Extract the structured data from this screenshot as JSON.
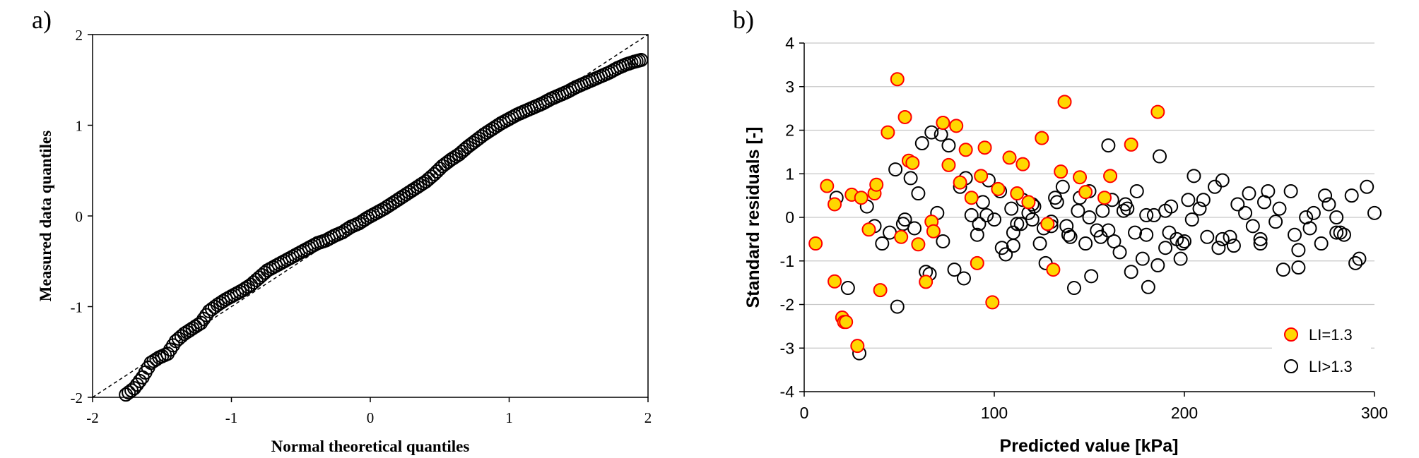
{
  "chart_data": [
    {
      "panel_label": "a)",
      "type": "scatter",
      "xlabel": "Normal theoretical quantiles",
      "ylabel": "Measured data quantiles",
      "xlim": [
        -2,
        2
      ],
      "ylim": [
        -2,
        2
      ],
      "xticks": [
        "-2",
        "-1",
        "0",
        "1",
        "2"
      ],
      "yticks": [
        "-2",
        "-1",
        "0",
        "1",
        "2"
      ],
      "reference_line": {
        "style": "dashed",
        "x": [
          -2,
          2
        ],
        "y": [
          -2,
          2
        ]
      },
      "marker": {
        "shape": "open-circle",
        "edge": "#000000",
        "fill": "none"
      },
      "series": [
        {
          "x": [
            -1.76,
            -1.7,
            -1.64,
            -1.58,
            -1.52,
            -1.46,
            -1.4,
            -1.34,
            -1.28,
            -1.22,
            -1.16,
            -1.1,
            -1.04,
            -0.98,
            -0.92,
            -0.86,
            -0.8,
            -0.74,
            -0.68,
            -0.62,
            -0.56,
            -0.5,
            -0.44,
            -0.38,
            -0.32,
            -0.26,
            -0.2,
            -0.14,
            -0.08,
            -0.02,
            0.04,
            0.1,
            0.16,
            0.22,
            0.28,
            0.34,
            0.4,
            0.46,
            0.52,
            0.58,
            0.64,
            0.7,
            0.76,
            0.82,
            0.88,
            0.94,
            1.0,
            1.06,
            1.12,
            1.18,
            1.24,
            1.3,
            1.36,
            1.42,
            1.48,
            1.54,
            1.6,
            1.66,
            1.72,
            1.78,
            1.84,
            1.9,
            1.95
          ],
          "y": [
            -1.97,
            -1.9,
            -1.78,
            -1.62,
            -1.56,
            -1.52,
            -1.38,
            -1.3,
            -1.24,
            -1.18,
            -1.05,
            -0.98,
            -0.92,
            -0.87,
            -0.82,
            -0.76,
            -0.68,
            -0.6,
            -0.55,
            -0.5,
            -0.45,
            -0.4,
            -0.35,
            -0.3,
            -0.27,
            -0.22,
            -0.18,
            -0.12,
            -0.08,
            -0.02,
            0.03,
            0.08,
            0.14,
            0.2,
            0.26,
            0.32,
            0.38,
            0.46,
            0.55,
            0.62,
            0.68,
            0.76,
            0.83,
            0.9,
            0.96,
            1.02,
            1.07,
            1.12,
            1.16,
            1.2,
            1.24,
            1.29,
            1.33,
            1.37,
            1.42,
            1.46,
            1.5,
            1.54,
            1.58,
            1.63,
            1.67,
            1.7,
            1.72
          ]
        }
      ]
    },
    {
      "panel_label": "b)",
      "type": "scatter",
      "xlabel": "Predicted value [kPa]",
      "ylabel": "Standard residuals [-]",
      "xlim": [
        0,
        300
      ],
      "ylim": [
        -4,
        4
      ],
      "xticks": [
        "0",
        "100",
        "200",
        "300"
      ],
      "yticks": [
        "-4",
        "-3",
        "-2",
        "-1",
        "0",
        "1",
        "2",
        "3",
        "4"
      ],
      "grid": "horizontal",
      "legend": "bottom-right",
      "series": [
        {
          "name": "LI=1.3",
          "marker": {
            "shape": "circle",
            "edge": "#ff0000",
            "fill": "#ffd700"
          },
          "x": [
            6,
            12,
            16,
            16,
            20,
            21,
            22,
            25,
            28,
            30,
            34,
            37,
            38,
            40,
            44,
            49,
            51,
            53,
            55,
            57,
            60,
            64,
            67,
            68,
            73,
            76,
            80,
            82,
            85,
            88,
            91,
            93,
            95,
            99,
            102,
            108,
            112,
            115,
            118,
            125,
            128,
            131,
            135,
            137,
            145,
            148,
            158,
            161,
            172,
            186
          ],
          "y": [
            -0.6,
            0.72,
            0.3,
            -1.47,
            -2.3,
            -2.4,
            -2.4,
            0.52,
            -2.95,
            0.45,
            -0.28,
            0.55,
            0.75,
            -1.67,
            1.95,
            3.17,
            -0.45,
            2.3,
            1.3,
            1.25,
            -0.62,
            -1.48,
            -0.1,
            -0.32,
            2.17,
            1.2,
            2.1,
            0.8,
            1.55,
            0.45,
            -1.05,
            0.95,
            1.6,
            -1.95,
            0.65,
            1.37,
            0.55,
            1.22,
            0.35,
            1.82,
            -0.15,
            -1.2,
            1.05,
            2.65,
            0.92,
            0.58,
            0.45,
            0.95,
            1.67,
            2.42
          ]
        },
        {
          "name": "LI>1.3",
          "marker": {
            "shape": "open-circle",
            "edge": "#000000",
            "fill": "none"
          },
          "x": [
            17,
            23,
            29,
            33,
            37,
            41,
            45,
            49,
            53,
            56,
            60,
            64,
            67,
            70,
            73,
            76,
            79,
            82,
            85,
            88,
            91,
            94,
            97,
            100,
            103,
            106,
            109,
            112,
            115,
            118,
            121,
            124,
            127,
            130,
            133,
            136,
            139,
            142,
            145,
            148,
            151,
            154,
            157,
            160,
            163,
            166,
            169,
            172,
            175,
            178,
            181,
            184,
            187,
            190,
            193,
            196,
            199,
            202,
            205,
            208,
            212,
            216,
            220,
            224,
            228,
            232,
            236,
            240,
            244,
            248,
            252,
            256,
            260,
            264,
            268,
            272,
            276,
            280,
            284,
            288,
            292,
            296,
            300,
            48,
            62,
            72,
            58,
            52,
            66,
            84,
            92,
            96,
            104,
            110,
            114,
            120,
            126,
            132,
            138,
            144,
            150,
            156,
            162,
            168,
            174,
            180,
            186,
            192,
            198,
            204,
            210,
            218,
            226,
            234,
            242,
            250,
            258,
            266,
            274,
            282,
            290,
            110,
            140,
            160,
            180,
            200,
            220,
            240,
            260,
            280,
            120,
            130,
            150,
            170,
            190
          ],
          "y": [
            0.45,
            -1.62,
            -3.12,
            0.25,
            -0.2,
            -0.6,
            -0.35,
            -2.05,
            -0.05,
            0.9,
            0.55,
            -1.25,
            1.95,
            0.1,
            -0.55,
            1.65,
            -1.2,
            0.7,
            0.9,
            0.05,
            -0.4,
            0.35,
            0.85,
            -0.05,
            0.6,
            -0.85,
            0.2,
            -0.15,
            0.4,
            0.1,
            0.25,
            -0.6,
            -1.05,
            -0.2,
            0.35,
            0.7,
            -0.4,
            -1.62,
            0.45,
            -0.6,
            -1.35,
            -0.3,
            0.15,
            1.65,
            -0.55,
            -0.8,
            0.3,
            -1.25,
            0.6,
            -0.95,
            -1.6,
            0.05,
            1.4,
            -0.7,
            0.25,
            -0.5,
            -0.6,
            0.4,
            0.95,
            0.2,
            -0.45,
            0.7,
            0.85,
            -0.45,
            0.3,
            0.1,
            -0.2,
            -0.5,
            0.6,
            -0.1,
            -1.2,
            0.6,
            -1.15,
            0.0,
            0.1,
            -0.6,
            0.3,
            0.0,
            -0.4,
            0.5,
            -0.95,
            0.7,
            0.1,
            1.1,
            1.7,
            1.9,
            -0.25,
            -0.15,
            -1.3,
            -1.4,
            -0.15,
            0.05,
            -0.7,
            -0.35,
            -0.15,
            -0.05,
            -0.25,
            0.45,
            -0.2,
            0.15,
            0.6,
            -0.45,
            0.4,
            0.15,
            -0.35,
            0.05,
            -1.1,
            -0.35,
            -0.95,
            -0.05,
            0.4,
            -0.7,
            -0.65,
            0.55,
            0.35,
            0.2,
            -0.4,
            -0.25,
            0.5,
            -0.35,
            -1.05,
            -0.65,
            -0.45,
            -0.3,
            -0.4,
            -0.55,
            -0.5,
            -0.6,
            -0.75,
            -0.35,
            0.3,
            -0.1,
            0.0,
            0.2,
            0.15
          ]
        }
      ]
    }
  ]
}
